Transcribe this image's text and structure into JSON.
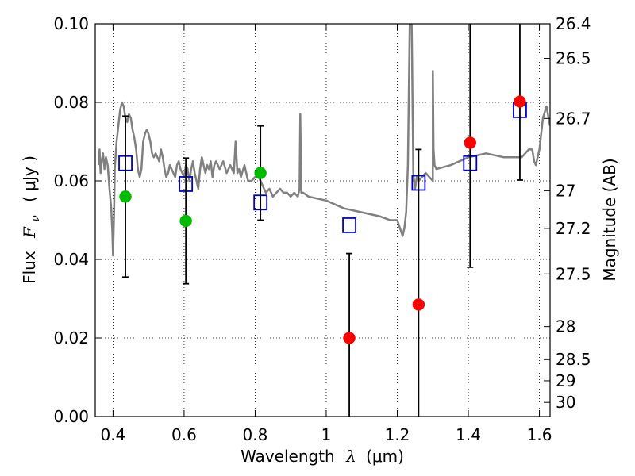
{
  "chart_data": {
    "type": "scatter",
    "xlabel_text": "Wavelength",
    "xlabel_symbol": "λ",
    "xlabel_unit": "(μm)",
    "ylabel_text": "Flux",
    "ylabel_symbol": "F",
    "ylabel_subscript": "ν",
    "ylabel_unit": "( μJy )",
    "y2label": "Magnitude (AB)",
    "xlim": [
      0.35,
      1.63
    ],
    "ylim": [
      0.0,
      0.1
    ],
    "grid": true,
    "grid_style": "dotted",
    "xticks": [
      0.4,
      0.6,
      0.8,
      1.0,
      1.2,
      1.4,
      1.6
    ],
    "xtick_labels": [
      "0.4",
      "0.6",
      "0.8",
      "1",
      "1.2",
      "1.4",
      "1.6"
    ],
    "yticks": [
      0.0,
      0.02,
      0.04,
      0.06,
      0.08,
      0.1
    ],
    "ytick_labels": [
      "0.00",
      "0.02",
      "0.04",
      "0.06",
      "0.08",
      "0.10"
    ],
    "magnitude_ticks": [
      {
        "label": "26.4",
        "flux": 0.1
      },
      {
        "label": "26.5",
        "flux": 0.0912
      },
      {
        "label": "26.7",
        "flux": 0.0759
      },
      {
        "label": "27",
        "flux": 0.0575
      },
      {
        "label": "27.2",
        "flux": 0.0479
      },
      {
        "label": "27.5",
        "flux": 0.0363
      },
      {
        "label": "28",
        "flux": 0.0229
      },
      {
        "label": "28.5",
        "flux": 0.0145
      },
      {
        "label": "29",
        "flux": 0.0091
      },
      {
        "label": "30",
        "flux": 0.0036
      }
    ],
    "series": [
      {
        "kind": "line",
        "color": "#808080",
        "x": [
          0.36,
          0.362,
          0.365,
          0.368,
          0.372,
          0.376,
          0.38,
          0.385,
          0.39,
          0.395,
          0.398,
          0.4,
          0.403,
          0.405,
          0.41,
          0.415,
          0.42,
          0.425,
          0.43,
          0.435,
          0.44,
          0.445,
          0.45,
          0.455,
          0.46,
          0.465,
          0.47,
          0.475,
          0.48,
          0.485,
          0.49,
          0.495,
          0.5,
          0.505,
          0.51,
          0.515,
          0.52,
          0.525,
          0.53,
          0.535,
          0.54,
          0.545,
          0.55,
          0.555,
          0.56,
          0.565,
          0.57,
          0.575,
          0.58,
          0.585,
          0.59,
          0.595,
          0.6,
          0.605,
          0.61,
          0.615,
          0.62,
          0.625,
          0.63,
          0.635,
          0.64,
          0.645,
          0.65,
          0.655,
          0.66,
          0.665,
          0.67,
          0.675,
          0.68,
          0.685,
          0.69,
          0.7,
          0.71,
          0.72,
          0.73,
          0.74,
          0.745,
          0.75,
          0.755,
          0.76,
          0.77,
          0.78,
          0.79,
          0.8,
          0.81,
          0.82,
          0.83,
          0.84,
          0.85,
          0.86,
          0.87,
          0.88,
          0.89,
          0.9,
          0.91,
          0.92,
          0.925,
          0.927,
          0.93,
          0.935,
          0.95,
          1.0,
          1.05,
          1.1,
          1.15,
          1.18,
          1.2,
          1.215,
          1.22,
          1.225,
          1.23,
          1.235,
          1.24,
          1.245,
          1.25,
          1.255,
          1.26,
          1.28,
          1.3,
          1.3,
          1.302,
          1.305,
          1.31,
          1.35,
          1.4,
          1.45,
          1.5,
          1.55,
          1.56,
          1.57,
          1.58,
          1.585,
          1.59,
          1.6,
          1.61,
          1.62,
          1.63
        ],
        "y": [
          0.064,
          0.068,
          0.062,
          0.065,
          0.067,
          0.063,
          0.066,
          0.064,
          0.058,
          0.053,
          0.047,
          0.041,
          0.052,
          0.063,
          0.07,
          0.074,
          0.078,
          0.08,
          0.079,
          0.076,
          0.075,
          0.077,
          0.076,
          0.073,
          0.071,
          0.068,
          0.063,
          0.061,
          0.063,
          0.07,
          0.072,
          0.073,
          0.072,
          0.07,
          0.067,
          0.066,
          0.067,
          0.066,
          0.065,
          0.068,
          0.066,
          0.063,
          0.061,
          0.062,
          0.064,
          0.063,
          0.062,
          0.061,
          0.064,
          0.065,
          0.063,
          0.062,
          0.061,
          0.064,
          0.063,
          0.06,
          0.063,
          0.065,
          0.062,
          0.06,
          0.058,
          0.063,
          0.066,
          0.064,
          0.062,
          0.064,
          0.063,
          0.065,
          0.061,
          0.064,
          0.065,
          0.063,
          0.065,
          0.062,
          0.064,
          0.062,
          0.07,
          0.062,
          0.063,
          0.061,
          0.064,
          0.06,
          0.06,
          0.061,
          0.061,
          0.059,
          0.057,
          0.058,
          0.056,
          0.057,
          0.058,
          0.057,
          0.057,
          0.056,
          0.057,
          0.056,
          0.058,
          0.077,
          0.057,
          0.057,
          0.056,
          0.055,
          0.053,
          0.052,
          0.051,
          0.05,
          0.05,
          0.046,
          0.048,
          0.052,
          0.064,
          0.1,
          0.105,
          0.062,
          0.058,
          0.061,
          0.06,
          0.062,
          0.06,
          0.088,
          0.068,
          0.064,
          0.063,
          0.064,
          0.066,
          0.067,
          0.066,
          0.066,
          0.067,
          0.068,
          0.068,
          0.065,
          0.064,
          0.068,
          0.076,
          0.079,
          0.074
        ]
      },
      {
        "kind": "open-squares",
        "color": "#0000cc",
        "x": [
          0.435,
          0.605,
          0.815,
          1.065,
          1.26,
          1.405,
          1.545
        ],
        "y": [
          0.0645,
          0.0592,
          0.0545,
          0.0487,
          0.0595,
          0.0645,
          0.078
        ]
      },
      {
        "kind": "filled-circles",
        "color": "#00bb00",
        "x": [
          0.435,
          0.605,
          0.815
        ],
        "y": [
          0.056,
          0.0498,
          0.062
        ],
        "yerr": [
          0.0205,
          0.016,
          0.012
        ]
      },
      {
        "kind": "filled-circles",
        "color": "#ff0000",
        "x": [
          1.065,
          1.26,
          1.405,
          1.545
        ],
        "y": [
          0.02,
          0.0285,
          0.0697,
          0.0802
        ],
        "yerr": [
          0.0215,
          0.0395,
          0.0317,
          0.02
        ]
      }
    ]
  }
}
